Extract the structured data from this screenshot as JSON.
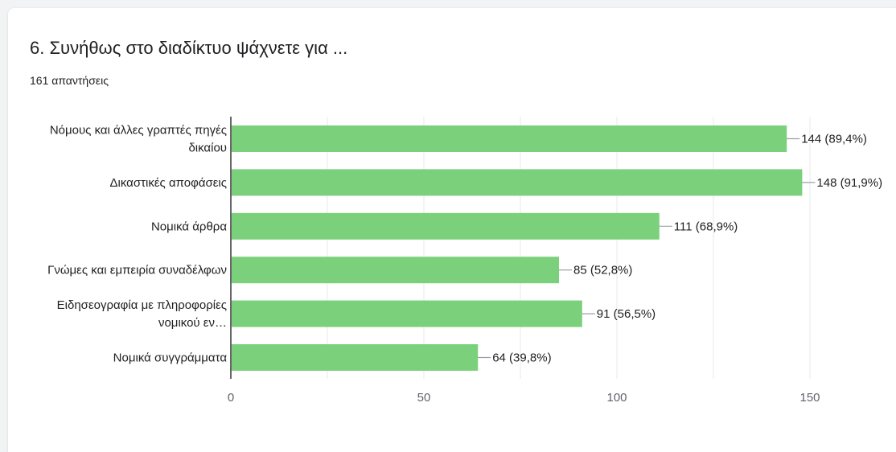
{
  "question": {
    "title": "6. Συνήθως στο διαδίκτυο ψάχνετε για ...",
    "responses": "161 απαντήσεις"
  },
  "colors": {
    "bar": "#7bd07b",
    "grid": "#e8e8e8",
    "axis": "#333333",
    "text": "#202124",
    "tick": "#5f6368"
  },
  "chart_data": {
    "type": "bar",
    "orientation": "horizontal",
    "categories": [
      [
        "Νόμους και άλλες γραπτές πηγές",
        "δικαίου"
      ],
      [
        "Δικαστικές αποφάσεις"
      ],
      [
        "Νομικά άρθρα"
      ],
      [
        "Γνώμες και εμπειρία συναδέλφων"
      ],
      [
        "Ειδησεογραφία με πληροφορίες",
        "νομικού εν…"
      ],
      [
        "Νομικά συγγράμματα"
      ]
    ],
    "values": [
      144,
      148,
      111,
      85,
      91,
      64
    ],
    "value_labels": [
      "144 (89,4%)",
      "148 (91,9%)",
      "111 (68,9%)",
      "85 (52,8%)",
      "91 (56,5%)",
      "64 (39,8%)"
    ],
    "xlim": [
      0,
      150
    ],
    "xticks": [
      0,
      50,
      100,
      150
    ],
    "grid": true
  }
}
